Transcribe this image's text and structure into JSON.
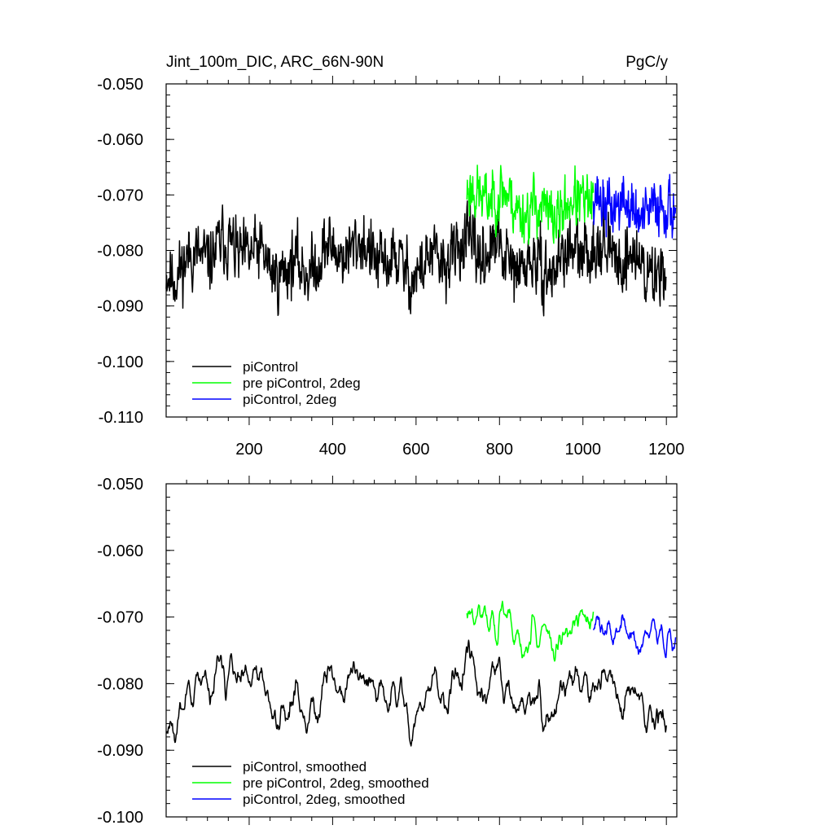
{
  "chart_data": [
    {
      "type": "line",
      "title_left": "Jint_100m_DIC, ARC_66N-90N",
      "title_right": "PgC/y",
      "xlabel": "",
      "ylabel": "",
      "xlim": [
        1,
        1225
      ],
      "ylim": [
        -0.11,
        -0.05
      ],
      "xticks": [
        200,
        400,
        600,
        800,
        1000,
        1200
      ],
      "xtick_labels": [
        "200",
        "400",
        "600",
        "800",
        "1000",
        "1200"
      ],
      "yticks": [
        -0.05,
        -0.06,
        -0.07,
        -0.08,
        -0.09,
        -0.1,
        -0.11
      ],
      "ytick_labels": [
        "-0.050",
        "-0.060",
        "-0.070",
        "-0.080",
        "-0.090",
        "-0.100",
        "-0.110"
      ],
      "legend_position": "bottom-left",
      "series": [
        {
          "name": "piControl",
          "color": "#000000",
          "x_start": 1,
          "x_end": 1200,
          "mean": -0.0815,
          "amplitude": 0.0095,
          "seed": 11,
          "smoothed": false
        },
        {
          "name": "pre piControl, 2deg",
          "color": "#00ff00",
          "x_start": 722,
          "x_end": 1025,
          "mean": -0.0715,
          "amplitude": 0.0085,
          "seed": 23,
          "smoothed": false
        },
        {
          "name": "piControl, 2deg",
          "color": "#0000ff",
          "x_start": 1025,
          "x_end": 1222,
          "mean": -0.0715,
          "amplitude": 0.0085,
          "seed": 37,
          "smoothed": false
        }
      ]
    },
    {
      "type": "line",
      "xlabel": "",
      "ylabel": "",
      "xlim": [
        1,
        1225
      ],
      "ylim": [
        -0.1,
        -0.05
      ],
      "xticks": [
        200,
        400,
        600,
        800,
        1000,
        1200
      ],
      "yticks": [
        -0.05,
        -0.06,
        -0.07,
        -0.08,
        -0.09,
        -0.1
      ],
      "ytick_labels": [
        "-0.050",
        "-0.060",
        "-0.070",
        "-0.080",
        "-0.090",
        "-0.100"
      ],
      "legend_position": "bottom-left",
      "series": [
        {
          "name": "piControl, smoothed",
          "color": "#000000",
          "x_start": 1,
          "x_end": 1200,
          "mean": -0.0815,
          "amplitude": 0.0095,
          "seed": 11,
          "smoothed": true
        },
        {
          "name": "pre piControl, 2deg, smoothed",
          "color": "#00ff00",
          "x_start": 722,
          "x_end": 1025,
          "mean": -0.0715,
          "amplitude": 0.0085,
          "seed": 23,
          "smoothed": true
        },
        {
          "name": "piControl, 2deg, smoothed",
          "color": "#0000ff",
          "x_start": 1025,
          "x_end": 1222,
          "mean": -0.0715,
          "amplitude": 0.0085,
          "seed": 37,
          "smoothed": true
        }
      ]
    }
  ]
}
